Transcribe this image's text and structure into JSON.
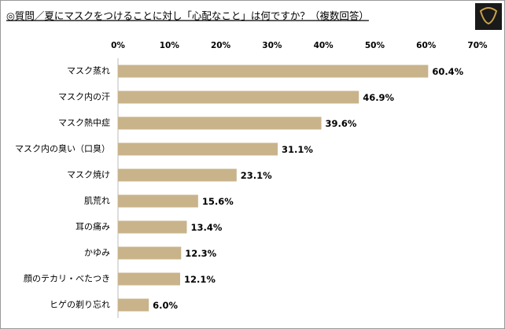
{
  "chart_data": {
    "type": "bar",
    "orientation": "horizontal",
    "title": "◎質問／夏にマスクをつけることに対し「心配なこと」は何ですか？（複数回答）",
    "categories": [
      "マスク蒸れ",
      "マスク内の汗",
      "マスク熱中症",
      "マスク内の臭い（口臭）",
      "マスク焼け",
      "肌荒れ",
      "耳の痛み",
      "かゆみ",
      "顔のテカリ・べたつき",
      "ヒゲの剃り忘れ"
    ],
    "values": [
      60.4,
      46.9,
      39.6,
      31.1,
      23.1,
      15.6,
      13.4,
      12.3,
      12.1,
      6.0
    ],
    "value_labels": [
      "60.4%",
      "46.9%",
      "39.6%",
      "31.1%",
      "23.1%",
      "15.6%",
      "13.4%",
      "12.3%",
      "12.1%",
      "6.0%"
    ],
    "color": "#c9b38a",
    "xlim": [
      0,
      70
    ],
    "xticks": [
      {
        "value": 0,
        "label": "0%"
      },
      {
        "value": 10,
        "label": "10%"
      },
      {
        "value": 20,
        "label": "20%"
      },
      {
        "value": 30,
        "label": "30%"
      },
      {
        "value": 40,
        "label": "40%"
      },
      {
        "value": 50,
        "label": "50%"
      },
      {
        "value": 60,
        "label": "60%"
      },
      {
        "value": 70,
        "label": "70%"
      }
    ],
    "grid": false
  }
}
